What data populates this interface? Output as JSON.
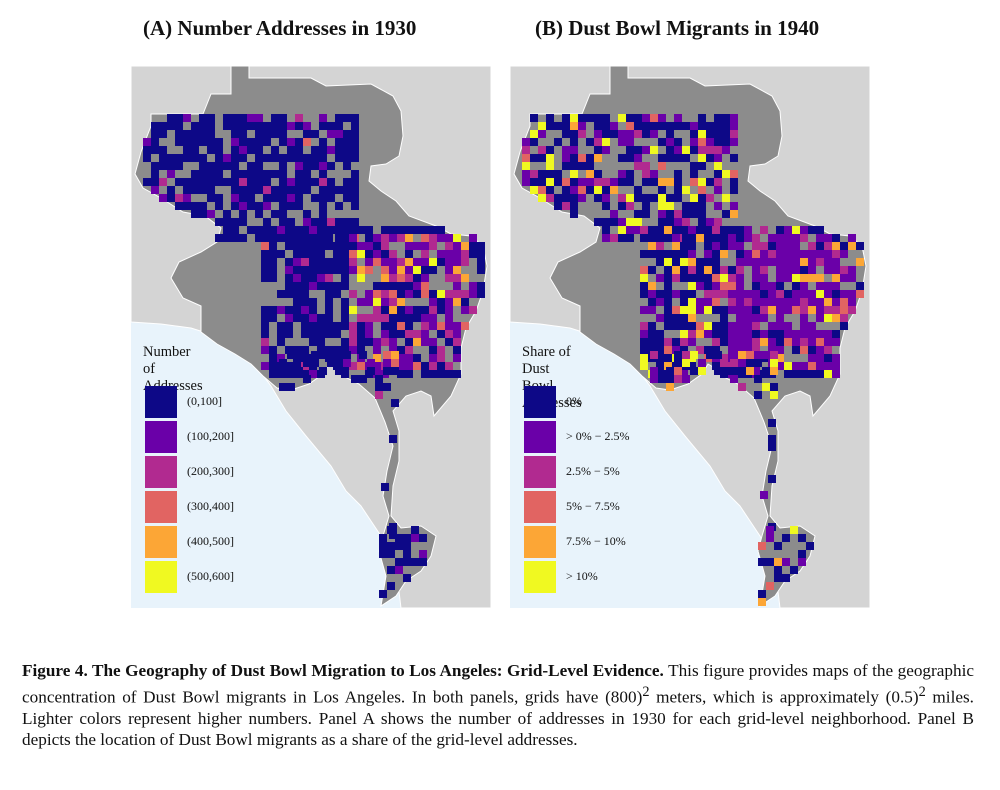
{
  "panels": [
    {
      "title": "(A) Number Addresses in 1930",
      "legend_title": [
        "Number of",
        "Addresses"
      ],
      "legend": [
        {
          "label": "(0,100]",
          "color": "#0d0887"
        },
        {
          "label": "(100,200]",
          "color": "#6a00a8"
        },
        {
          "label": "(200,300]",
          "color": "#b12a90"
        },
        {
          "label": "(300,400]",
          "color": "#e16462"
        },
        {
          "label": "(400,500]",
          "color": "#fca636"
        },
        {
          "label": "(500,600]",
          "color": "#f0f921"
        }
      ]
    },
    {
      "title": "(B) Dust Bowl Migrants in 1940",
      "legend_title": [
        "Share of Dust",
        "Bowl Addresses"
      ],
      "legend": [
        {
          "label": "0%",
          "color": "#0d0887"
        },
        {
          "label": "> 0% − 2.5%",
          "color": "#6a00a8"
        },
        {
          "label": "2.5% − 5%",
          "color": "#b12a90"
        },
        {
          "label": "5%  − 7.5%",
          "color": "#e16462"
        },
        {
          "label": "7.5% − 10%",
          "color": "#fca636"
        },
        {
          "label": "> 10%",
          "color": "#f0f921"
        }
      ]
    }
  ],
  "colors": {
    "ocean": "#e8f3fb",
    "land": "#d4d4d4",
    "city": "#8c8c8c",
    "border": "#ffffff"
  },
  "caption": {
    "bold": "Figure 4. The Geography of Dust Bowl Migration to Los Angeles: Grid-Level Evidence.",
    "text_1": "This figure provides maps of the geographic concentration of Dust Bowl migrants in Los Angeles. In both panels, grids have (800)",
    "sup_1": "2",
    "text_2": " meters, which is approximately (0.5)",
    "sup_2": "2",
    "text_3": " miles. Lighter colors represent higher numbers. Panel A shows the number of addresses in 1930 for each grid-level neighborhood. Panel B depicts the location of Dust Bowl migrants as a share of the grid-level addresses."
  }
}
